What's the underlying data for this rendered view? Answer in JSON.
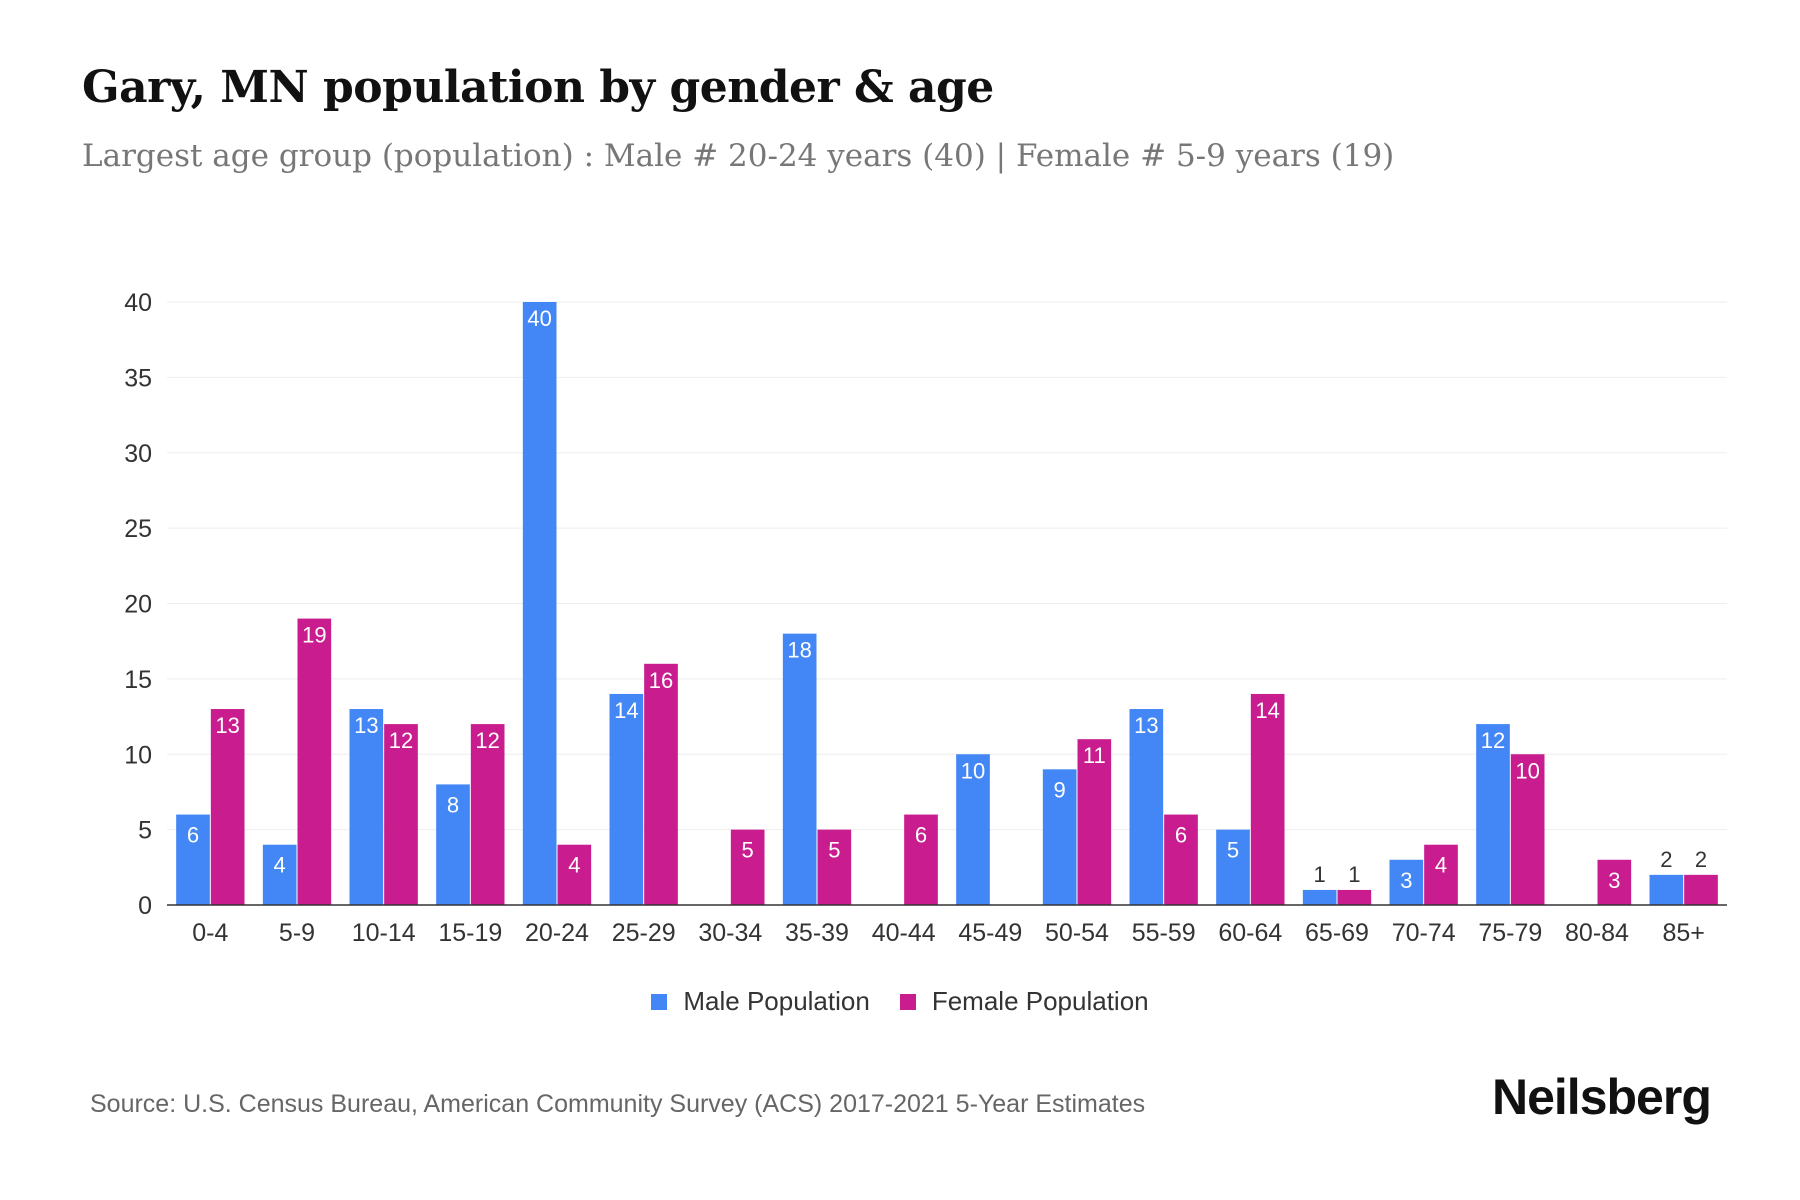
{
  "title": "Gary, MN population by gender & age",
  "subtitle": "Largest age group (population) : Male # 20-24 years (40) | Female # 5-9 years (19)",
  "source": "Source: U.S. Census Bureau, American Community Survey (ACS) 2017-2021 5-Year Estimates",
  "logo": "Neilsberg",
  "chart_data": {
    "type": "bar",
    "categories": [
      "0-4",
      "5-9",
      "10-14",
      "15-19",
      "20-24",
      "25-29",
      "30-34",
      "35-39",
      "40-44",
      "45-49",
      "50-54",
      "55-59",
      "60-64",
      "65-69",
      "70-74",
      "75-79",
      "80-84",
      "85+"
    ],
    "series": [
      {
        "name": "Male Population",
        "color": "#4287f5",
        "values": [
          6,
          4,
          13,
          8,
          40,
          14,
          0,
          18,
          0,
          10,
          9,
          13,
          5,
          1,
          3,
          12,
          0,
          2
        ]
      },
      {
        "name": "Female Population",
        "color": "#c91d8f",
        "values": [
          13,
          19,
          12,
          12,
          4,
          16,
          5,
          5,
          6,
          0,
          11,
          6,
          14,
          1,
          4,
          10,
          3,
          2
        ]
      }
    ],
    "ylim": [
      0,
      40
    ],
    "yticks": [
      0,
      5,
      10,
      15,
      20,
      25,
      30,
      35,
      40
    ],
    "grid": true,
    "legend": "bottom"
  }
}
